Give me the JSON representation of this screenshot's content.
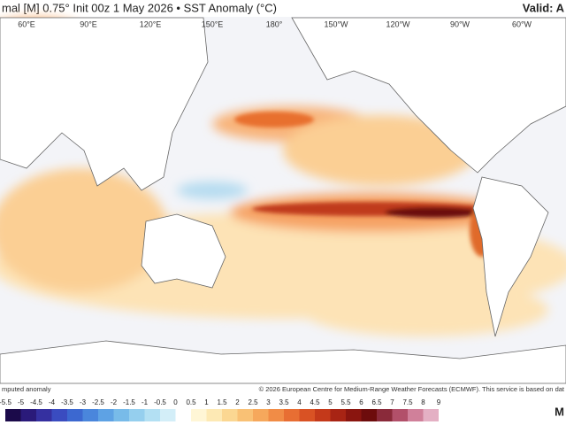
{
  "header": {
    "title": "mal [M] 0.75° Init 00z 1 May 2026 • SST Anomaly (°C)",
    "valid": "Valid: A"
  },
  "longitudes": [
    "60°E",
    "90°E",
    "120°E",
    "150°E",
    "180°",
    "150°W",
    "120°W",
    "90°W",
    "60°W"
  ],
  "footer": {
    "left": "mputed anomaly",
    "right": "© 2026 European Centre for Medium-Range Weather Forecasts (ECMWF). This service is based on dat",
    "logo": "M"
  },
  "colorbar": {
    "ticks": [
      -5.5,
      -5,
      -4.5,
      -4,
      -3.5,
      -3,
      -2.5,
      -2,
      -1.5,
      -1,
      -0.5,
      0,
      0.5,
      1,
      1.5,
      2,
      2.5,
      3,
      3.5,
      4,
      4.5,
      5,
      5.5,
      6,
      6.5,
      7,
      7.5,
      8,
      9
    ],
    "colors": [
      "#1b0a4a",
      "#2a1a7a",
      "#3530a0",
      "#3a4cc0",
      "#3c68d0",
      "#4a86dc",
      "#5ea2e4",
      "#78bbe9",
      "#95cfee",
      "#b3e0f3",
      "#d3eef8",
      "#ffffff",
      "#fff6d6",
      "#fde9b4",
      "#fbd792",
      "#f9c175",
      "#f6a85c",
      "#f18c46",
      "#e86e33",
      "#d95224",
      "#c4391a",
      "#a82414",
      "#8a150f",
      "#6d0c0c",
      "#8a2a3a",
      "#b2506a",
      "#d0809a",
      "#e4b0c4"
    ]
  }
}
